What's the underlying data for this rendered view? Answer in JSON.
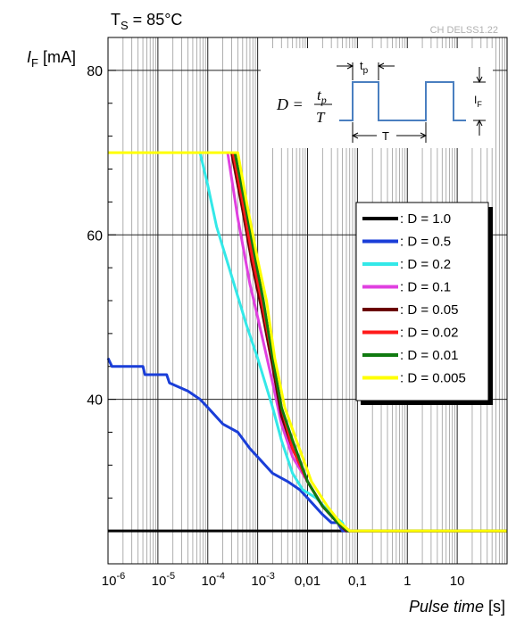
{
  "chart_data": {
    "type": "line",
    "title_main": "T",
    "title_sub": "S",
    "title_rest": " = 85°C",
    "code": "CH DELSS1.22",
    "ylabel_sym": "I",
    "ylabel_sub": "F",
    "ylabel_unit": " [mA]",
    "xlabel_italic": "Pulse time",
    "xlabel_unit": " [s]",
    "xscale": "log",
    "xlim": [
      1e-06,
      100
    ],
    "ylim": [
      20,
      84
    ],
    "grid": true,
    "legend_placement": "right",
    "y_ticks": [
      "40",
      "60",
      "80"
    ],
    "x_ticks": [
      {
        "base": "10",
        "exp": "-6"
      },
      {
        "base": "10",
        "exp": "-5"
      },
      {
        "base": "10",
        "exp": "-4"
      },
      {
        "base": "10",
        "exp": "-3"
      },
      {
        "base": "0,01",
        "exp": ""
      },
      {
        "base": "0,1",
        "exp": ""
      },
      {
        "base": "1",
        "exp": ""
      },
      {
        "base": "10",
        "exp": ""
      }
    ],
    "inset": {
      "formula_lhs": "D =",
      "formula_num": "t",
      "formula_num_sub": "p",
      "formula_den": "T",
      "tp_label": "t",
      "tp_sub": "p",
      "T_label": "T",
      "IF_label": "I",
      "IF_sub": "F"
    },
    "series": [
      {
        "name": ": D = 1.0",
        "color": "#000000",
        "points": [
          [
            1e-06,
            24
          ],
          [
            100,
            24
          ]
        ]
      },
      {
        "name": ": D = 0.5",
        "color": "#1a3ed8",
        "points": [
          [
            1e-06,
            45
          ],
          [
            1.2e-06,
            44
          ],
          [
            5e-06,
            44
          ],
          [
            5.5e-06,
            43
          ],
          [
            1.5e-05,
            43
          ],
          [
            1.7e-05,
            42
          ],
          [
            4e-05,
            41
          ],
          [
            7e-05,
            40
          ],
          [
            0.0001,
            39
          ],
          [
            0.0002,
            37
          ],
          [
            0.0004,
            36
          ],
          [
            0.0007,
            34
          ],
          [
            0.001,
            33
          ],
          [
            0.002,
            31
          ],
          [
            0.004,
            30
          ],
          [
            0.007,
            29
          ],
          [
            0.01,
            28
          ],
          [
            0.02,
            26
          ],
          [
            0.03,
            25
          ],
          [
            0.04,
            25
          ],
          [
            0.05,
            24
          ],
          [
            100,
            24
          ]
        ]
      },
      {
        "name": ": D = 0.2",
        "color": "#33e8e8",
        "points": [
          [
            7e-05,
            70
          ],
          [
            0.0001,
            66
          ],
          [
            0.00015,
            61
          ],
          [
            0.0003,
            55
          ],
          [
            0.0006,
            49
          ],
          [
            0.001,
            45
          ],
          [
            0.002,
            39
          ],
          [
            0.003,
            35
          ],
          [
            0.005,
            31
          ],
          [
            0.008,
            29
          ],
          [
            0.015,
            28
          ],
          [
            0.03,
            26
          ],
          [
            0.05,
            25
          ],
          [
            0.06,
            24
          ],
          [
            100,
            24
          ]
        ]
      },
      {
        "name": ": D = 0.1",
        "color": "#e040e0",
        "points": [
          [
            0.00025,
            70
          ],
          [
            0.0004,
            62
          ],
          [
            0.0007,
            54
          ],
          [
            0.001,
            50
          ],
          [
            0.002,
            42
          ],
          [
            0.003,
            37
          ],
          [
            0.005,
            33
          ],
          [
            0.01,
            30
          ],
          [
            0.02,
            27
          ],
          [
            0.04,
            25
          ],
          [
            0.06,
            24
          ],
          [
            100,
            24
          ]
        ]
      },
      {
        "name": ": D = 0.05",
        "color": "#6b0000",
        "points": [
          [
            0.0003,
            70
          ],
          [
            0.0005,
            63
          ],
          [
            0.0008,
            56
          ],
          [
            0.0012,
            51
          ],
          [
            0.002,
            44
          ],
          [
            0.003,
            38
          ],
          [
            0.005,
            34
          ],
          [
            0.01,
            30
          ],
          [
            0.02,
            27
          ],
          [
            0.04,
            25
          ],
          [
            0.06,
            24
          ],
          [
            100,
            24
          ]
        ]
      },
      {
        "name": ": D = 0.02",
        "color": "#ff1a1a",
        "points": [
          [
            0.00032,
            70
          ],
          [
            0.0005,
            64
          ],
          [
            0.0008,
            57
          ],
          [
            0.0012,
            52
          ],
          [
            0.002,
            45
          ],
          [
            0.003,
            39
          ],
          [
            0.005,
            34
          ],
          [
            0.01,
            30
          ],
          [
            0.02,
            27
          ],
          [
            0.04,
            25
          ],
          [
            0.065,
            24
          ],
          [
            100,
            24
          ]
        ]
      },
      {
        "name": ": D = 0.01",
        "color": "#107a10",
        "points": [
          [
            0.00035,
            70
          ],
          [
            0.00055,
            64
          ],
          [
            0.0009,
            57
          ],
          [
            0.0013,
            52
          ],
          [
            0.002,
            45
          ],
          [
            0.003,
            39
          ],
          [
            0.005,
            35
          ],
          [
            0.01,
            30
          ],
          [
            0.02,
            27
          ],
          [
            0.04,
            25
          ],
          [
            0.065,
            24
          ],
          [
            100,
            24
          ]
        ]
      },
      {
        "name": ": D = 0.005",
        "color": "#ffff00",
        "points": [
          [
            1e-06,
            70
          ],
          [
            0.0004,
            70
          ],
          [
            0.0006,
            64
          ],
          [
            0.001,
            57
          ],
          [
            0.0015,
            52
          ],
          [
            0.0022,
            45
          ],
          [
            0.0035,
            39
          ],
          [
            0.006,
            35
          ],
          [
            0.012,
            30
          ],
          [
            0.025,
            27
          ],
          [
            0.045,
            25
          ],
          [
            0.07,
            24
          ],
          [
            100,
            24
          ]
        ]
      }
    ]
  }
}
